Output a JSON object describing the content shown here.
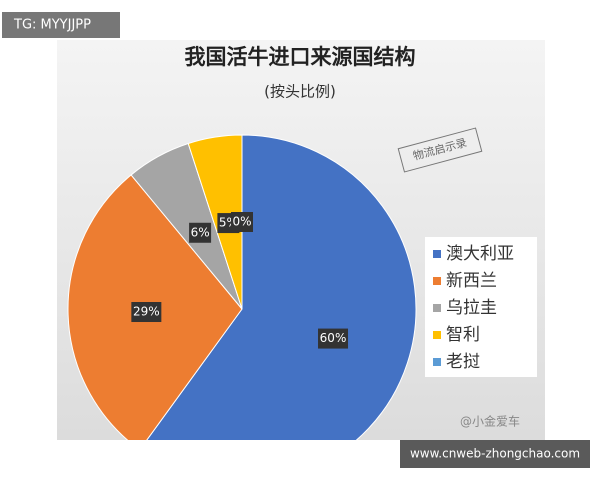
{
  "chart_data": {
    "type": "pie",
    "title": "我国活牛进口来源国结构",
    "subtitle": "(按头比例)",
    "categories": [
      "澳大利亚",
      "新西兰",
      "乌拉圭",
      "智利",
      "老挝"
    ],
    "values": [
      60,
      29,
      6,
      5,
      0
    ],
    "value_labels": [
      "60%",
      "29%",
      "6%",
      "5%",
      "0%"
    ],
    "colors": [
      "#4472c4",
      "#ed7d31",
      "#a5a5a5",
      "#ffc000",
      "#5b9bd5"
    ],
    "legend": "right"
  },
  "watermarks": {
    "stamp": "物流启示录",
    "top_left": "TG: MYYJJPP",
    "bottom_right": "www.cnweb-zhongchao.com",
    "author": "@小金爱车"
  }
}
